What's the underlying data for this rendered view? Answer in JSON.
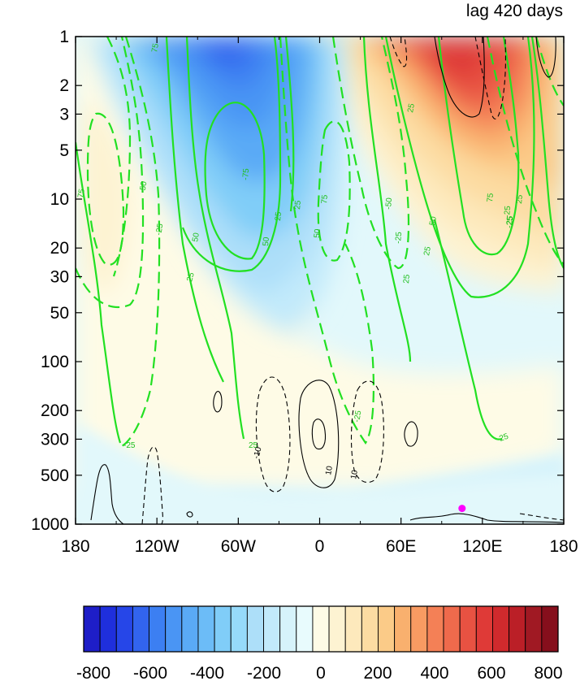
{
  "chart_data": {
    "type": "heatmap",
    "title_right": "lag 420 days",
    "x_tick_labels": [
      "180",
      "120W",
      "60W",
      "0",
      "60E",
      "120E",
      "180"
    ],
    "x_tick_values": [
      -180,
      -120,
      -60,
      0,
      60,
      120,
      180
    ],
    "y_tick_labels": [
      "1",
      "2",
      "3",
      "5",
      "10",
      "20",
      "30",
      "50",
      "100",
      "200",
      "300",
      "500",
      "1000"
    ],
    "y_tick_values": [
      1,
      2,
      3,
      5,
      10,
      20,
      30,
      50,
      100,
      200,
      300,
      500,
      1000
    ],
    "y_scale": "log",
    "y_reversed": true,
    "xlim": [
      -180,
      180
    ],
    "ylim": [
      1000,
      1
    ],
    "colorbar": {
      "min": -800,
      "max": 800,
      "step": 50,
      "tick_labels": [
        "-800",
        "-600",
        "-400",
        "-200",
        "0",
        "200",
        "400",
        "600",
        "800"
      ],
      "colors": [
        "#1e1ec8",
        "#1f2fdc",
        "#2646e8",
        "#3264ee",
        "#3c7ff2",
        "#4a95f4",
        "#5aaaf6",
        "#6cbcf7",
        "#80cdf8",
        "#96dafa",
        "#addff9",
        "#c2eafb",
        "#d6f3fb",
        "#e8fbfd",
        "#fefbe6",
        "#fdf3d2",
        "#fde9bc",
        "#fcdca2",
        "#fbcb88",
        "#f9b06e",
        "#f89b62",
        "#f48056",
        "#ef6a4c",
        "#e85242",
        "#df3a37",
        "#d02a2d",
        "#bb1f27",
        "#a01923",
        "#860f1c"
      ]
    },
    "shading_regions": [
      {
        "name": "negative anomaly center",
        "lon": -72,
        "p": 1.3,
        "value": -550
      },
      {
        "name": "positive anomaly center",
        "lon": 108,
        "p": 1.5,
        "value": 550
      },
      {
        "name": "weak positive west lobe",
        "lon": -160,
        "p": 15,
        "value": 100
      }
    ],
    "contour_labels_green": [
      "75",
      "-50",
      "25",
      "-25",
      "50",
      "75",
      "25",
      "50",
      "-75",
      "50",
      "25",
      "-25",
      "75",
      "-50",
      "-25",
      "-25",
      "25",
      "50",
      "25",
      "75",
      "25",
      "25",
      "-25",
      "-25",
      "25",
      "25",
      "25"
    ],
    "contour_labels_black": [
      "-10",
      "10",
      "10"
    ],
    "marker": {
      "lon": 105,
      "p": 800,
      "color": "#ff00ff"
    }
  }
}
